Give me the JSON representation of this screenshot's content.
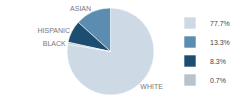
{
  "chart_data": {
    "type": "pie",
    "categories": [
      "WHITE",
      "ASIAN",
      "HISPANIC",
      "BLACK"
    ],
    "values": [
      77.7,
      13.3,
      8.3,
      0.7
    ],
    "value_labels": [
      "77.7%",
      "13.3%",
      "8.3%",
      "0.7%"
    ],
    "colors": [
      "#cdd9e5",
      "#5b8db0",
      "#1e4d72",
      "#b8c4cc"
    ],
    "legend": "right"
  }
}
